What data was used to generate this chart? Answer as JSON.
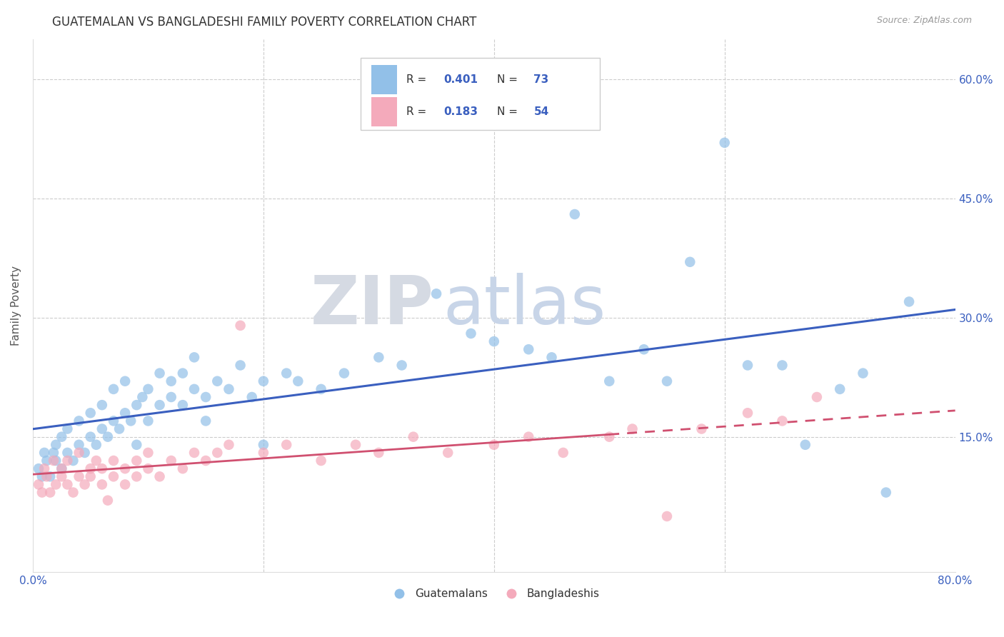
{
  "title": "GUATEMALAN VS BANGLADESHI FAMILY POVERTY CORRELATION CHART",
  "source": "Source: ZipAtlas.com",
  "ylabel": "Family Poverty",
  "legend_r1_val": "0.401",
  "legend_n1_val": "73",
  "legend_r2_val": "0.183",
  "legend_n2_val": "54",
  "blue_color": "#92C0E8",
  "pink_color": "#F4AABB",
  "line_blue": "#3A5FBF",
  "line_pink": "#D05070",
  "watermark_zip": "ZIP",
  "watermark_atlas": "atlas",
  "watermark_zip_color": "#d8dde8",
  "watermark_atlas_color": "#c5d0e0",
  "xlim": [
    0.0,
    0.8
  ],
  "ylim": [
    -0.02,
    0.65
  ],
  "guat_x": [
    0.005,
    0.008,
    0.01,
    0.012,
    0.015,
    0.018,
    0.02,
    0.02,
    0.025,
    0.025,
    0.03,
    0.03,
    0.035,
    0.04,
    0.04,
    0.045,
    0.05,
    0.05,
    0.055,
    0.06,
    0.06,
    0.065,
    0.07,
    0.07,
    0.075,
    0.08,
    0.08,
    0.085,
    0.09,
    0.09,
    0.095,
    0.1,
    0.1,
    0.11,
    0.11,
    0.12,
    0.12,
    0.13,
    0.13,
    0.14,
    0.14,
    0.15,
    0.15,
    0.16,
    0.17,
    0.18,
    0.19,
    0.2,
    0.2,
    0.22,
    0.23,
    0.25,
    0.27,
    0.3,
    0.32,
    0.35,
    0.38,
    0.4,
    0.43,
    0.45,
    0.47,
    0.5,
    0.53,
    0.55,
    0.57,
    0.6,
    0.62,
    0.65,
    0.67,
    0.7,
    0.72,
    0.74,
    0.76
  ],
  "guat_y": [
    0.11,
    0.1,
    0.13,
    0.12,
    0.1,
    0.13,
    0.12,
    0.14,
    0.11,
    0.15,
    0.13,
    0.16,
    0.12,
    0.14,
    0.17,
    0.13,
    0.15,
    0.18,
    0.14,
    0.16,
    0.19,
    0.15,
    0.17,
    0.21,
    0.16,
    0.18,
    0.22,
    0.17,
    0.19,
    0.14,
    0.2,
    0.17,
    0.21,
    0.19,
    0.23,
    0.2,
    0.22,
    0.19,
    0.23,
    0.21,
    0.25,
    0.2,
    0.17,
    0.22,
    0.21,
    0.24,
    0.2,
    0.22,
    0.14,
    0.23,
    0.22,
    0.21,
    0.23,
    0.25,
    0.24,
    0.33,
    0.28,
    0.27,
    0.26,
    0.25,
    0.43,
    0.22,
    0.26,
    0.22,
    0.37,
    0.52,
    0.24,
    0.24,
    0.14,
    0.21,
    0.23,
    0.08,
    0.32
  ],
  "bang_x": [
    0.005,
    0.008,
    0.01,
    0.012,
    0.015,
    0.018,
    0.02,
    0.025,
    0.025,
    0.03,
    0.03,
    0.035,
    0.04,
    0.04,
    0.045,
    0.05,
    0.05,
    0.055,
    0.06,
    0.06,
    0.065,
    0.07,
    0.07,
    0.08,
    0.08,
    0.09,
    0.09,
    0.1,
    0.1,
    0.11,
    0.12,
    0.13,
    0.14,
    0.15,
    0.16,
    0.17,
    0.18,
    0.2,
    0.22,
    0.25,
    0.28,
    0.3,
    0.33,
    0.36,
    0.4,
    0.43,
    0.46,
    0.5,
    0.52,
    0.55,
    0.58,
    0.62,
    0.65,
    0.68
  ],
  "bang_y": [
    0.09,
    0.08,
    0.11,
    0.1,
    0.08,
    0.12,
    0.09,
    0.11,
    0.1,
    0.09,
    0.12,
    0.08,
    0.1,
    0.13,
    0.09,
    0.11,
    0.1,
    0.12,
    0.09,
    0.11,
    0.07,
    0.1,
    0.12,
    0.11,
    0.09,
    0.12,
    0.1,
    0.13,
    0.11,
    0.1,
    0.12,
    0.11,
    0.13,
    0.12,
    0.13,
    0.14,
    0.29,
    0.13,
    0.14,
    0.12,
    0.14,
    0.13,
    0.15,
    0.13,
    0.14,
    0.15,
    0.13,
    0.15,
    0.16,
    0.05,
    0.16,
    0.18,
    0.17,
    0.2
  ]
}
